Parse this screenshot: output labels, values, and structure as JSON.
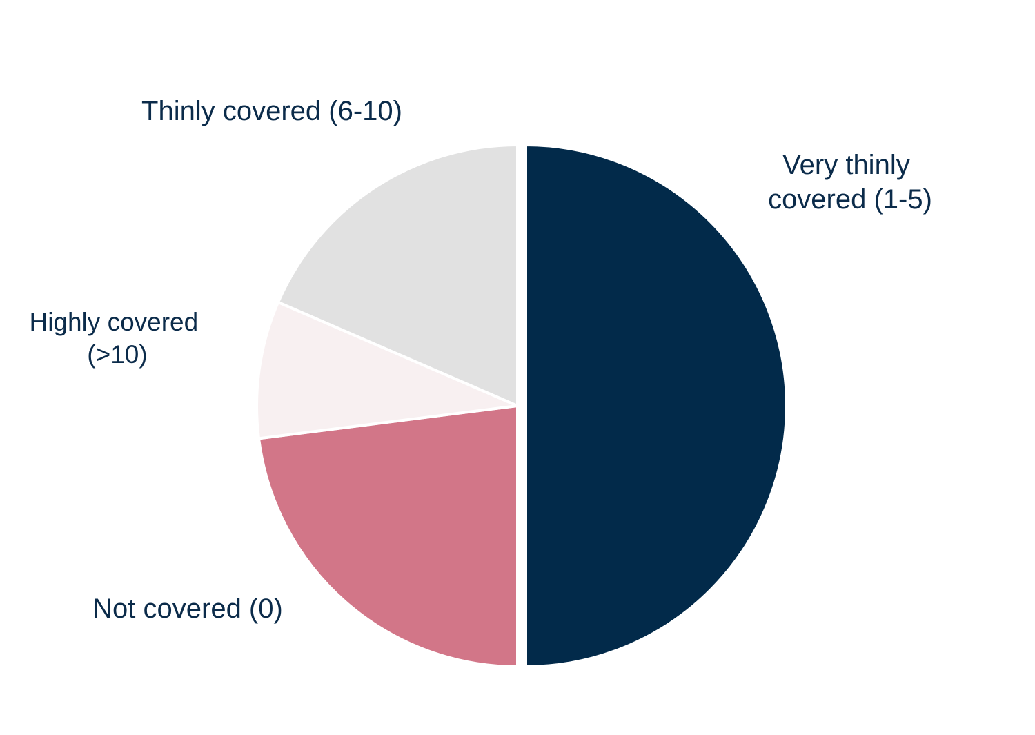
{
  "chart_data": {
    "type": "pie",
    "slices": [
      {
        "label_lines": [
          "Very thinly",
          "covered (1-5)"
        ],
        "value": 50,
        "color": "#022a4a",
        "exploded": true
      },
      {
        "label_lines": [
          "Not covered (0)"
        ],
        "value": 23,
        "color": "#d27688",
        "exploded": false
      },
      {
        "label_lines": [
          "Highly covered",
          "(>10)"
        ],
        "value": 8.5,
        "color": "#f8f0f1",
        "exploded": false
      },
      {
        "label_lines": [
          "Thinly covered (6-10)"
        ],
        "value": 18.5,
        "color": "#e1e1e1",
        "exploded": false
      }
    ],
    "start": "12 o'clock",
    "direction": "clockwise",
    "legend": "none"
  }
}
